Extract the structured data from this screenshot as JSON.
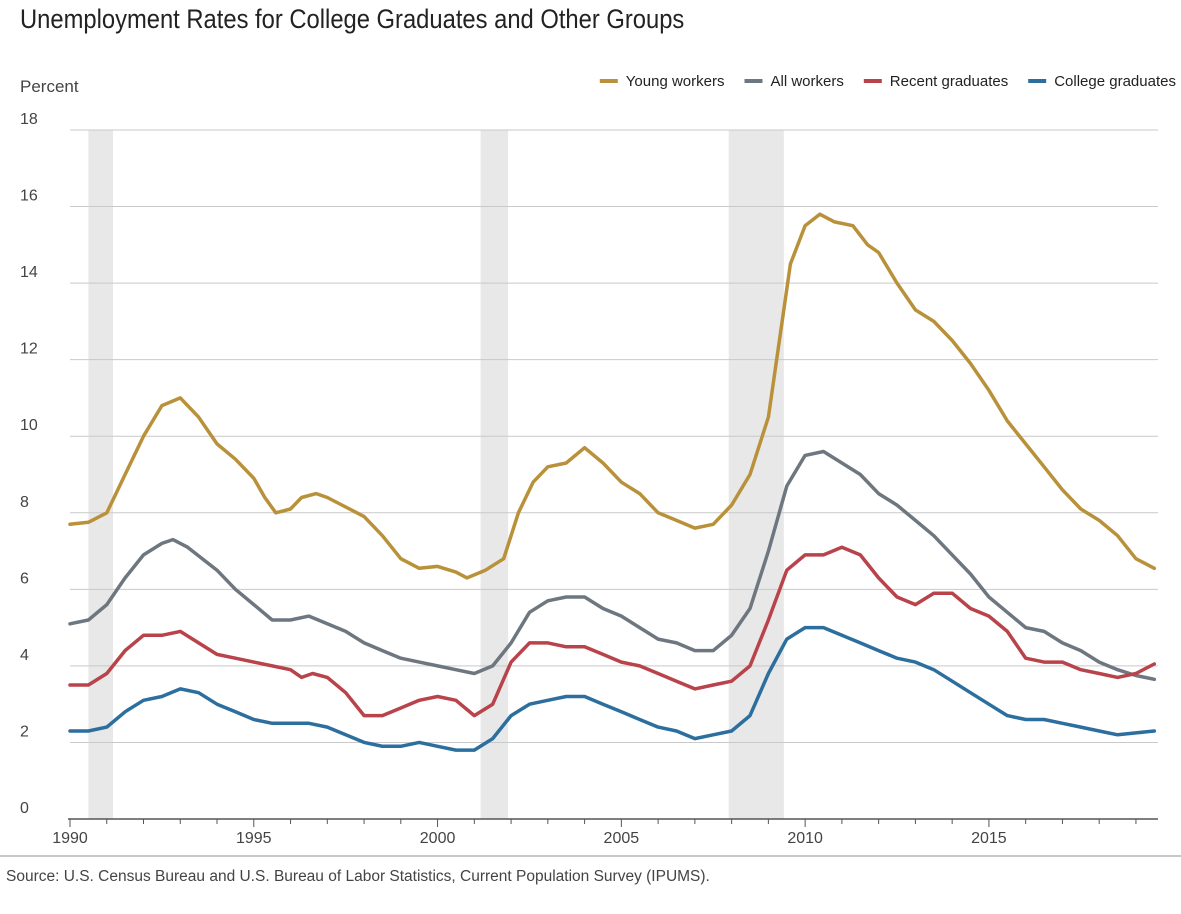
{
  "source_note": "Source: U.S. Census Bureau and U.S. Bureau of Labor Statistics, Current Population Survey (IPUMS).",
  "chart_data": {
    "type": "line",
    "title": "Unemployment Rates for College Graduates and Other Groups",
    "ylabel": "Percent",
    "xlabel": "",
    "xlim": [
      1990,
      2019.6
    ],
    "ylim": [
      0,
      18
    ],
    "yticks": [
      0,
      2,
      4,
      6,
      8,
      10,
      12,
      14,
      16,
      18
    ],
    "xticks": [
      1990,
      1995,
      2000,
      2005,
      2010,
      2015
    ],
    "grid": "horizontal",
    "legend_position": "top-right",
    "recessions": [
      [
        1990.5,
        1991.17
      ],
      [
        2001.17,
        2001.92
      ],
      [
        2007.92,
        2009.42
      ]
    ],
    "recession_color": "#e8e8e8",
    "series": [
      {
        "name": "Young workers",
        "color": "#b8913a",
        "points": [
          [
            1990,
            7.7
          ],
          [
            1990.5,
            7.75
          ],
          [
            1991,
            8.0
          ],
          [
            1991.5,
            9.0
          ],
          [
            1992,
            10.0
          ],
          [
            1992.5,
            10.8
          ],
          [
            1993,
            11.0
          ],
          [
            1993.5,
            10.5
          ],
          [
            1994,
            9.8
          ],
          [
            1994.5,
            9.4
          ],
          [
            1995,
            8.9
          ],
          [
            1995.3,
            8.4
          ],
          [
            1995.6,
            8.0
          ],
          [
            1996,
            8.1
          ],
          [
            1996.3,
            8.4
          ],
          [
            1996.7,
            8.5
          ],
          [
            1997,
            8.4
          ],
          [
            1997.5,
            8.15
          ],
          [
            1998,
            7.9
          ],
          [
            1998.5,
            7.4
          ],
          [
            1999,
            6.8
          ],
          [
            1999.5,
            6.55
          ],
          [
            2000,
            6.6
          ],
          [
            2000.5,
            6.45
          ],
          [
            2000.8,
            6.3
          ],
          [
            2001.3,
            6.5
          ],
          [
            2001.8,
            6.8
          ],
          [
            2002.2,
            8.0
          ],
          [
            2002.6,
            8.8
          ],
          [
            2003,
            9.2
          ],
          [
            2003.5,
            9.3
          ],
          [
            2004,
            9.7
          ],
          [
            2004.5,
            9.3
          ],
          [
            2005,
            8.8
          ],
          [
            2005.5,
            8.5
          ],
          [
            2006,
            8.0
          ],
          [
            2006.5,
            7.8
          ],
          [
            2007,
            7.6
          ],
          [
            2007.5,
            7.7
          ],
          [
            2008,
            8.2
          ],
          [
            2008.5,
            9.0
          ],
          [
            2009,
            10.5
          ],
          [
            2009.3,
            12.5
          ],
          [
            2009.6,
            14.5
          ],
          [
            2010,
            15.5
          ],
          [
            2010.4,
            15.8
          ],
          [
            2010.8,
            15.6
          ],
          [
            2011.3,
            15.5
          ],
          [
            2011.7,
            15.0
          ],
          [
            2012,
            14.8
          ],
          [
            2012.5,
            14.0
          ],
          [
            2013,
            13.3
          ],
          [
            2013.5,
            13.0
          ],
          [
            2014,
            12.5
          ],
          [
            2014.5,
            11.9
          ],
          [
            2015,
            11.2
          ],
          [
            2015.5,
            10.4
          ],
          [
            2016,
            9.8
          ],
          [
            2016.5,
            9.2
          ],
          [
            2017,
            8.6
          ],
          [
            2017.5,
            8.1
          ],
          [
            2018,
            7.8
          ],
          [
            2018.5,
            7.4
          ],
          [
            2019,
            6.8
          ],
          [
            2019.5,
            6.55
          ]
        ]
      },
      {
        "name": "All workers",
        "color": "#6e7780",
        "points": [
          [
            1990,
            5.1
          ],
          [
            1990.5,
            5.2
          ],
          [
            1991,
            5.6
          ],
          [
            1991.5,
            6.3
          ],
          [
            1992,
            6.9
          ],
          [
            1992.5,
            7.2
          ],
          [
            1992.8,
            7.3
          ],
          [
            1993.2,
            7.1
          ],
          [
            1993.6,
            6.8
          ],
          [
            1994,
            6.5
          ],
          [
            1994.5,
            6.0
          ],
          [
            1995,
            5.6
          ],
          [
            1995.5,
            5.2
          ],
          [
            1996,
            5.2
          ],
          [
            1996.5,
            5.3
          ],
          [
            1997,
            5.1
          ],
          [
            1997.5,
            4.9
          ],
          [
            1998,
            4.6
          ],
          [
            1998.5,
            4.4
          ],
          [
            1999,
            4.2
          ],
          [
            1999.5,
            4.1
          ],
          [
            2000,
            4.0
          ],
          [
            2000.5,
            3.9
          ],
          [
            2001,
            3.8
          ],
          [
            2001.5,
            4.0
          ],
          [
            2002,
            4.6
          ],
          [
            2002.5,
            5.4
          ],
          [
            2003,
            5.7
          ],
          [
            2003.5,
            5.8
          ],
          [
            2004,
            5.8
          ],
          [
            2004.5,
            5.5
          ],
          [
            2005,
            5.3
          ],
          [
            2005.5,
            5.0
          ],
          [
            2006,
            4.7
          ],
          [
            2006.5,
            4.6
          ],
          [
            2007,
            4.4
          ],
          [
            2007.5,
            4.4
          ],
          [
            2008,
            4.8
          ],
          [
            2008.5,
            5.5
          ],
          [
            2009,
            7.0
          ],
          [
            2009.5,
            8.7
          ],
          [
            2010,
            9.5
          ],
          [
            2010.5,
            9.6
          ],
          [
            2011,
            9.3
          ],
          [
            2011.5,
            9.0
          ],
          [
            2012,
            8.5
          ],
          [
            2012.5,
            8.2
          ],
          [
            2013,
            7.8
          ],
          [
            2013.5,
            7.4
          ],
          [
            2014,
            6.9
          ],
          [
            2014.5,
            6.4
          ],
          [
            2015,
            5.8
          ],
          [
            2015.5,
            5.4
          ],
          [
            2016,
            5.0
          ],
          [
            2016.5,
            4.9
          ],
          [
            2017,
            4.6
          ],
          [
            2017.5,
            4.4
          ],
          [
            2018,
            4.1
          ],
          [
            2018.5,
            3.9
          ],
          [
            2019,
            3.75
          ],
          [
            2019.5,
            3.65
          ]
        ]
      },
      {
        "name": "Recent graduates",
        "color": "#b9434a",
        "points": [
          [
            1990,
            3.5
          ],
          [
            1990.5,
            3.5
          ],
          [
            1991,
            3.8
          ],
          [
            1991.5,
            4.4
          ],
          [
            1992,
            4.8
          ],
          [
            1992.5,
            4.8
          ],
          [
            1993,
            4.9
          ],
          [
            1993.5,
            4.6
          ],
          [
            1994,
            4.3
          ],
          [
            1994.5,
            4.2
          ],
          [
            1995,
            4.1
          ],
          [
            1995.5,
            4.0
          ],
          [
            1996,
            3.9
          ],
          [
            1996.3,
            3.7
          ],
          [
            1996.6,
            3.8
          ],
          [
            1997,
            3.7
          ],
          [
            1997.5,
            3.3
          ],
          [
            1998,
            2.7
          ],
          [
            1998.5,
            2.7
          ],
          [
            1999,
            2.9
          ],
          [
            1999.5,
            3.1
          ],
          [
            2000,
            3.2
          ],
          [
            2000.5,
            3.1
          ],
          [
            2001,
            2.7
          ],
          [
            2001.5,
            3.0
          ],
          [
            2002,
            4.1
          ],
          [
            2002.5,
            4.6
          ],
          [
            2003,
            4.6
          ],
          [
            2003.5,
            4.5
          ],
          [
            2004,
            4.5
          ],
          [
            2004.5,
            4.3
          ],
          [
            2005,
            4.1
          ],
          [
            2005.5,
            4.0
          ],
          [
            2006,
            3.8
          ],
          [
            2006.5,
            3.6
          ],
          [
            2007,
            3.4
          ],
          [
            2007.5,
            3.5
          ],
          [
            2008,
            3.6
          ],
          [
            2008.5,
            4.0
          ],
          [
            2009,
            5.2
          ],
          [
            2009.5,
            6.5
          ],
          [
            2010,
            6.9
          ],
          [
            2010.5,
            6.9
          ],
          [
            2011,
            7.1
          ],
          [
            2011.5,
            6.9
          ],
          [
            2012,
            6.3
          ],
          [
            2012.5,
            5.8
          ],
          [
            2013,
            5.6
          ],
          [
            2013.5,
            5.9
          ],
          [
            2014,
            5.9
          ],
          [
            2014.5,
            5.5
          ],
          [
            2015,
            5.3
          ],
          [
            2015.5,
            4.9
          ],
          [
            2016,
            4.2
          ],
          [
            2016.5,
            4.1
          ],
          [
            2017,
            4.1
          ],
          [
            2017.5,
            3.9
          ],
          [
            2018,
            3.8
          ],
          [
            2018.5,
            3.7
          ],
          [
            2019,
            3.8
          ],
          [
            2019.5,
            4.05
          ]
        ]
      },
      {
        "name": "College graduates",
        "color": "#2c6f9f",
        "points": [
          [
            1990,
            2.3
          ],
          [
            1990.5,
            2.3
          ],
          [
            1991,
            2.4
          ],
          [
            1991.5,
            2.8
          ],
          [
            1992,
            3.1
          ],
          [
            1992.5,
            3.2
          ],
          [
            1993,
            3.4
          ],
          [
            1993.5,
            3.3
          ],
          [
            1994,
            3.0
          ],
          [
            1994.5,
            2.8
          ],
          [
            1995,
            2.6
          ],
          [
            1995.5,
            2.5
          ],
          [
            1996,
            2.5
          ],
          [
            1996.5,
            2.5
          ],
          [
            1997,
            2.4
          ],
          [
            1997.5,
            2.2
          ],
          [
            1998,
            2.0
          ],
          [
            1998.5,
            1.9
          ],
          [
            1999,
            1.9
          ],
          [
            1999.5,
            2.0
          ],
          [
            2000,
            1.9
          ],
          [
            2000.5,
            1.8
          ],
          [
            2001,
            1.8
          ],
          [
            2001.5,
            2.1
          ],
          [
            2002,
            2.7
          ],
          [
            2002.5,
            3.0
          ],
          [
            2003,
            3.1
          ],
          [
            2003.5,
            3.2
          ],
          [
            2004,
            3.2
          ],
          [
            2004.5,
            3.0
          ],
          [
            2005,
            2.8
          ],
          [
            2005.5,
            2.6
          ],
          [
            2006,
            2.4
          ],
          [
            2006.5,
            2.3
          ],
          [
            2007,
            2.1
          ],
          [
            2007.5,
            2.2
          ],
          [
            2008,
            2.3
          ],
          [
            2008.5,
            2.7
          ],
          [
            2009,
            3.8
          ],
          [
            2009.5,
            4.7
          ],
          [
            2010,
            5.0
          ],
          [
            2010.5,
            5.0
          ],
          [
            2011,
            4.8
          ],
          [
            2011.5,
            4.6
          ],
          [
            2012,
            4.4
          ],
          [
            2012.5,
            4.2
          ],
          [
            2013,
            4.1
          ],
          [
            2013.5,
            3.9
          ],
          [
            2014,
            3.6
          ],
          [
            2014.5,
            3.3
          ],
          [
            2015,
            3.0
          ],
          [
            2015.5,
            2.7
          ],
          [
            2016,
            2.6
          ],
          [
            2016.5,
            2.6
          ],
          [
            2017,
            2.5
          ],
          [
            2017.5,
            2.4
          ],
          [
            2018,
            2.3
          ],
          [
            2018.5,
            2.2
          ],
          [
            2019,
            2.25
          ],
          [
            2019.5,
            2.3
          ]
        ]
      }
    ]
  }
}
